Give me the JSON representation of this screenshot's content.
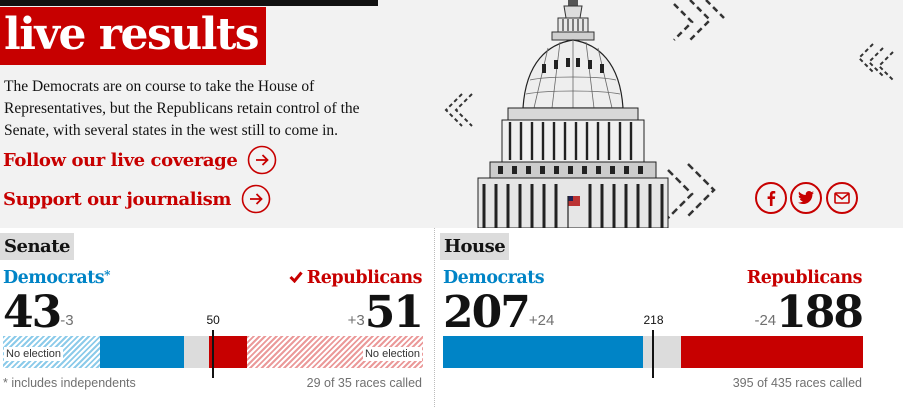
{
  "header": {
    "title": "live results",
    "intro": "The Democrats are on course to take the House of Representatives, but the Republicans retain control of the Senate, with several states in the west still to come in.",
    "cta_coverage": "Follow our live coverage",
    "cta_support": "Support our journalism"
  },
  "share": {
    "facebook_icon": "facebook-icon",
    "twitter_icon": "twitter-icon",
    "email_icon": "email-icon"
  },
  "senate": {
    "label": "Senate",
    "dem_name": "Democrats",
    "dem_asterisk": "*",
    "rep_name": "Republicans",
    "dem_seats": "43",
    "dem_change": "-3",
    "rep_seats": "51",
    "rep_change": "+3",
    "total_seats": 100,
    "majority": "50",
    "dem_no_election": 23,
    "rep_no_election": 42,
    "no_election_label": "No election",
    "footnote": "* includes independents",
    "races_called": "29 of 35 races called"
  },
  "house": {
    "label": "House",
    "dem_name": "Democrats",
    "rep_name": "Republicans",
    "dem_seats": "207",
    "dem_change": "+24",
    "rep_seats": "188",
    "rep_change": "-24",
    "total_seats": 435,
    "majority": "218",
    "races_called": "395 of 435 races called"
  },
  "colors": {
    "dem": "#0084c6",
    "rep": "#c70000",
    "undecided": "#dcdcdc",
    "dem_hatch": "#8ccbea",
    "rep_hatch": "#eb9a9a"
  }
}
